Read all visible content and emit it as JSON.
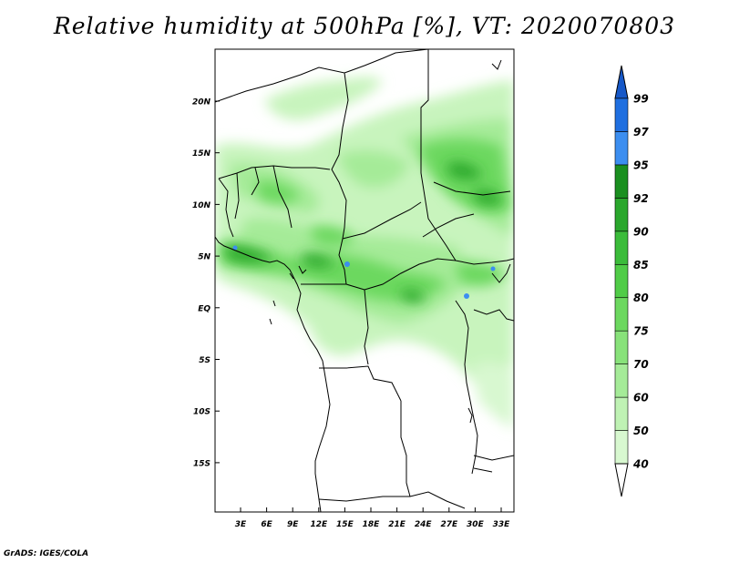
{
  "title": "Relative humidity at 500hPa [%], VT: 2020070803",
  "credit": "GrADS: IGES/COLA",
  "map": {
    "lon_ticks": [
      "3E",
      "6E",
      "9E",
      "12E",
      "15E",
      "18E",
      "21E",
      "24E",
      "27E",
      "30E",
      "33E"
    ],
    "lat_ticks": [
      "20N",
      "15N",
      "10N",
      "5N",
      "EQ",
      "5S",
      "10S",
      "15S"
    ]
  },
  "colorbar": {
    "levels": [
      "40",
      "50",
      "60",
      "70",
      "75",
      "80",
      "85",
      "90",
      "92",
      "95",
      "97",
      "99"
    ],
    "colors": [
      "#f0fff0",
      "#d8f8d0",
      "#bff2b4",
      "#a5eb98",
      "#88e27a",
      "#6cd85f",
      "#50cc47",
      "#3bbc3a",
      "#2aa72c",
      "#1a8f1f",
      "#3c8ef0",
      "#1f6fe0",
      "#1658c8"
    ]
  }
}
